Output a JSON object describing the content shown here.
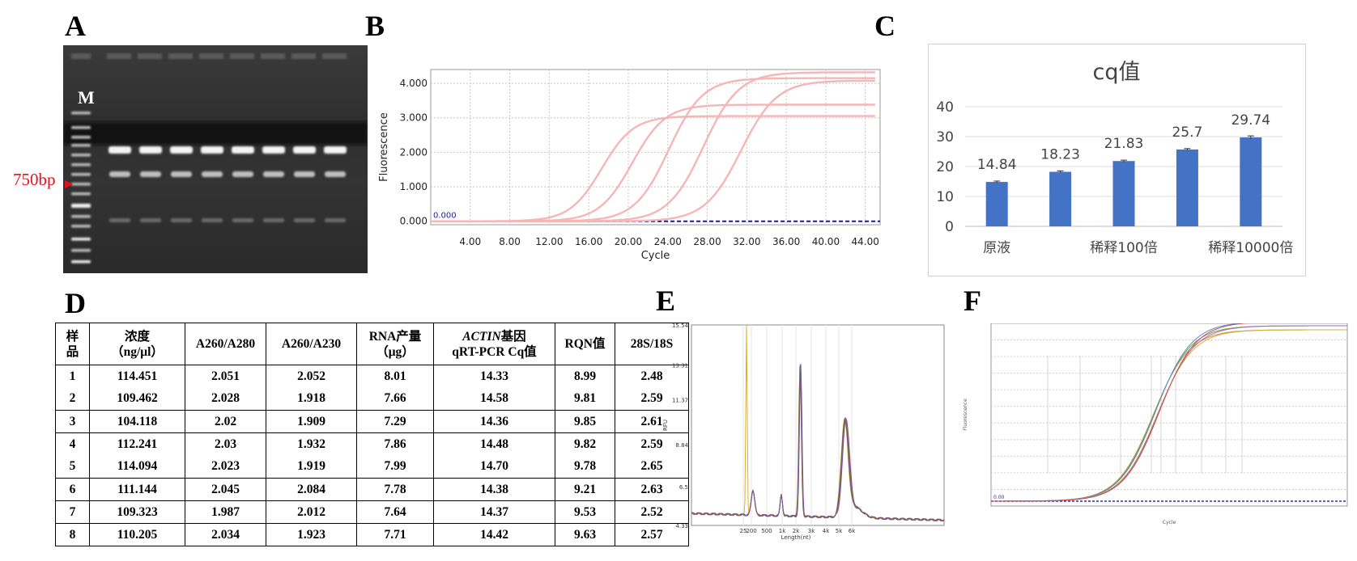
{
  "panels": {
    "a": "A",
    "b": "B",
    "c": "C",
    "d": "D",
    "e": "E",
    "f": "F"
  },
  "gel": {
    "marker_label": "M",
    "size_label": "750bp",
    "sample_lanes": 8
  },
  "chart_data": [
    {
      "panel": "B",
      "type": "line",
      "xlabel": "Cycle",
      "ylabel": "Fluorescence",
      "xlim": [
        0,
        45.5
      ],
      "ylim": [
        -0.1,
        4.4
      ],
      "x_ticks": [
        "4.00",
        "8.00",
        "12.00",
        "16.00",
        "20.00",
        "24.00",
        "28.00",
        "32.00",
        "36.00",
        "40.00",
        "44.00"
      ],
      "x_tick_values": [
        4,
        8,
        12,
        16,
        20,
        24,
        28,
        32,
        36,
        40,
        44
      ],
      "y_ticks": [
        "0.000",
        "1.000",
        "2.000",
        "3.000",
        "4.000"
      ],
      "y_tick_values": [
        0,
        1,
        2,
        3,
        4
      ],
      "threshold_label": "0.000",
      "threshold_value": 0.0,
      "series_color": "#f4b6b6",
      "threshold_color": "#1a1aa0",
      "series": [
        {
          "midpoint": 17.3,
          "plateau": 3.05,
          "slope": 0.62
        },
        {
          "midpoint": 20.4,
          "plateau": 3.38,
          "slope": 0.6
        },
        {
          "midpoint": 24.1,
          "plateau": 4.15,
          "slope": 0.58
        },
        {
          "midpoint": 27.6,
          "plateau": 4.32,
          "slope": 0.56
        },
        {
          "midpoint": 31.4,
          "plateau": 4.08,
          "slope": 0.55
        }
      ],
      "grid": true
    },
    {
      "panel": "C",
      "type": "bar",
      "title": "cq值",
      "categories": [
        "原液",
        "",
        "稀释100倍",
        "",
        "稀释10000倍"
      ],
      "category_label_slots": [
        0,
        2,
        4
      ],
      "values": [
        14.84,
        18.23,
        21.83,
        25.7,
        29.74
      ],
      "value_labels": [
        "14.84",
        "18.23",
        "21.83",
        "25.7",
        "29.74"
      ],
      "error": [
        0.3,
        0.3,
        0.3,
        0.3,
        0.5
      ],
      "ylim": [
        0,
        40
      ],
      "y_ticks": [
        "0",
        "10",
        "20",
        "30",
        "40"
      ],
      "y_tick_values": [
        0,
        10,
        20,
        30,
        40
      ],
      "bar_color": "#4472c4",
      "grid": true
    },
    {
      "panel": "D",
      "type": "table",
      "headers": [
        [
          "样",
          "品"
        ],
        [
          "浓度",
          "（ng/μl）"
        ],
        [
          "A260/A280"
        ],
        [
          "A260/A230"
        ],
        [
          "RNA产量",
          "（μg）"
        ],
        [
          "ACTIN基因",
          "qRT-PCR Cq值"
        ],
        [
          "RQN值"
        ],
        [
          "28S/18S"
        ]
      ],
      "rows": [
        [
          "1",
          "114.451",
          "2.051",
          "2.052",
          "8.01",
          "14.33",
          "8.99",
          "2.48"
        ],
        [
          "2",
          "109.462",
          "2.028",
          "1.918",
          "7.66",
          "14.58",
          "9.81",
          "2.59"
        ],
        [
          "3",
          "104.118",
          "2.02",
          "1.909",
          "7.29",
          "14.36",
          "9.85",
          "2.61"
        ],
        [
          "4",
          "112.241",
          "2.03",
          "1.932",
          "7.86",
          "14.48",
          "9.82",
          "2.59"
        ],
        [
          "5",
          "114.094",
          "2.023",
          "1.919",
          "7.99",
          "14.70",
          "9.78",
          "2.65"
        ],
        [
          "6",
          "111.144",
          "2.045",
          "2.084",
          "7.78",
          "14.38",
          "9.21",
          "2.63"
        ],
        [
          "7",
          "109.323",
          "1.987",
          "2.012",
          "7.64",
          "14.37",
          "9.53",
          "2.52"
        ],
        [
          "8",
          "110.205",
          "2.034",
          "1.923",
          "7.71",
          "14.42",
          "9.63",
          "2.57"
        ]
      ]
    },
    {
      "panel": "E",
      "type": "line",
      "xlabel": "Length(nt)",
      "ylabel": "RFU",
      "y_ticks": [
        "4.33",
        "6.5",
        "8.84",
        "11.37",
        "13.31",
        "15.54"
      ],
      "y_tick_values": [
        4.33,
        6.5,
        8.84,
        11.37,
        13.31,
        15.54
      ],
      "x_ticks": [
        "25",
        "200",
        "500",
        "1k",
        "2k",
        "3k",
        "4k",
        "5k",
        "6k"
      ],
      "series_colors": [
        "#e0b020",
        "#2d6db5",
        "#c8302f",
        "#6b9a3a",
        "#7a4fa0"
      ],
      "peaks_x_position": [
        25,
        1000,
        2000,
        4500
      ],
      "grid": true
    },
    {
      "panel": "F",
      "type": "line",
      "xlabel": "Cycle",
      "ylabel": "Fluorescence",
      "threshold_label": "0.00",
      "series_colors": [
        "#e57f2b",
        "#6aaa4a",
        "#4f8fd0",
        "#c9b43a",
        "#9a6bc0",
        "#d04a4a"
      ],
      "grid": true
    }
  ]
}
